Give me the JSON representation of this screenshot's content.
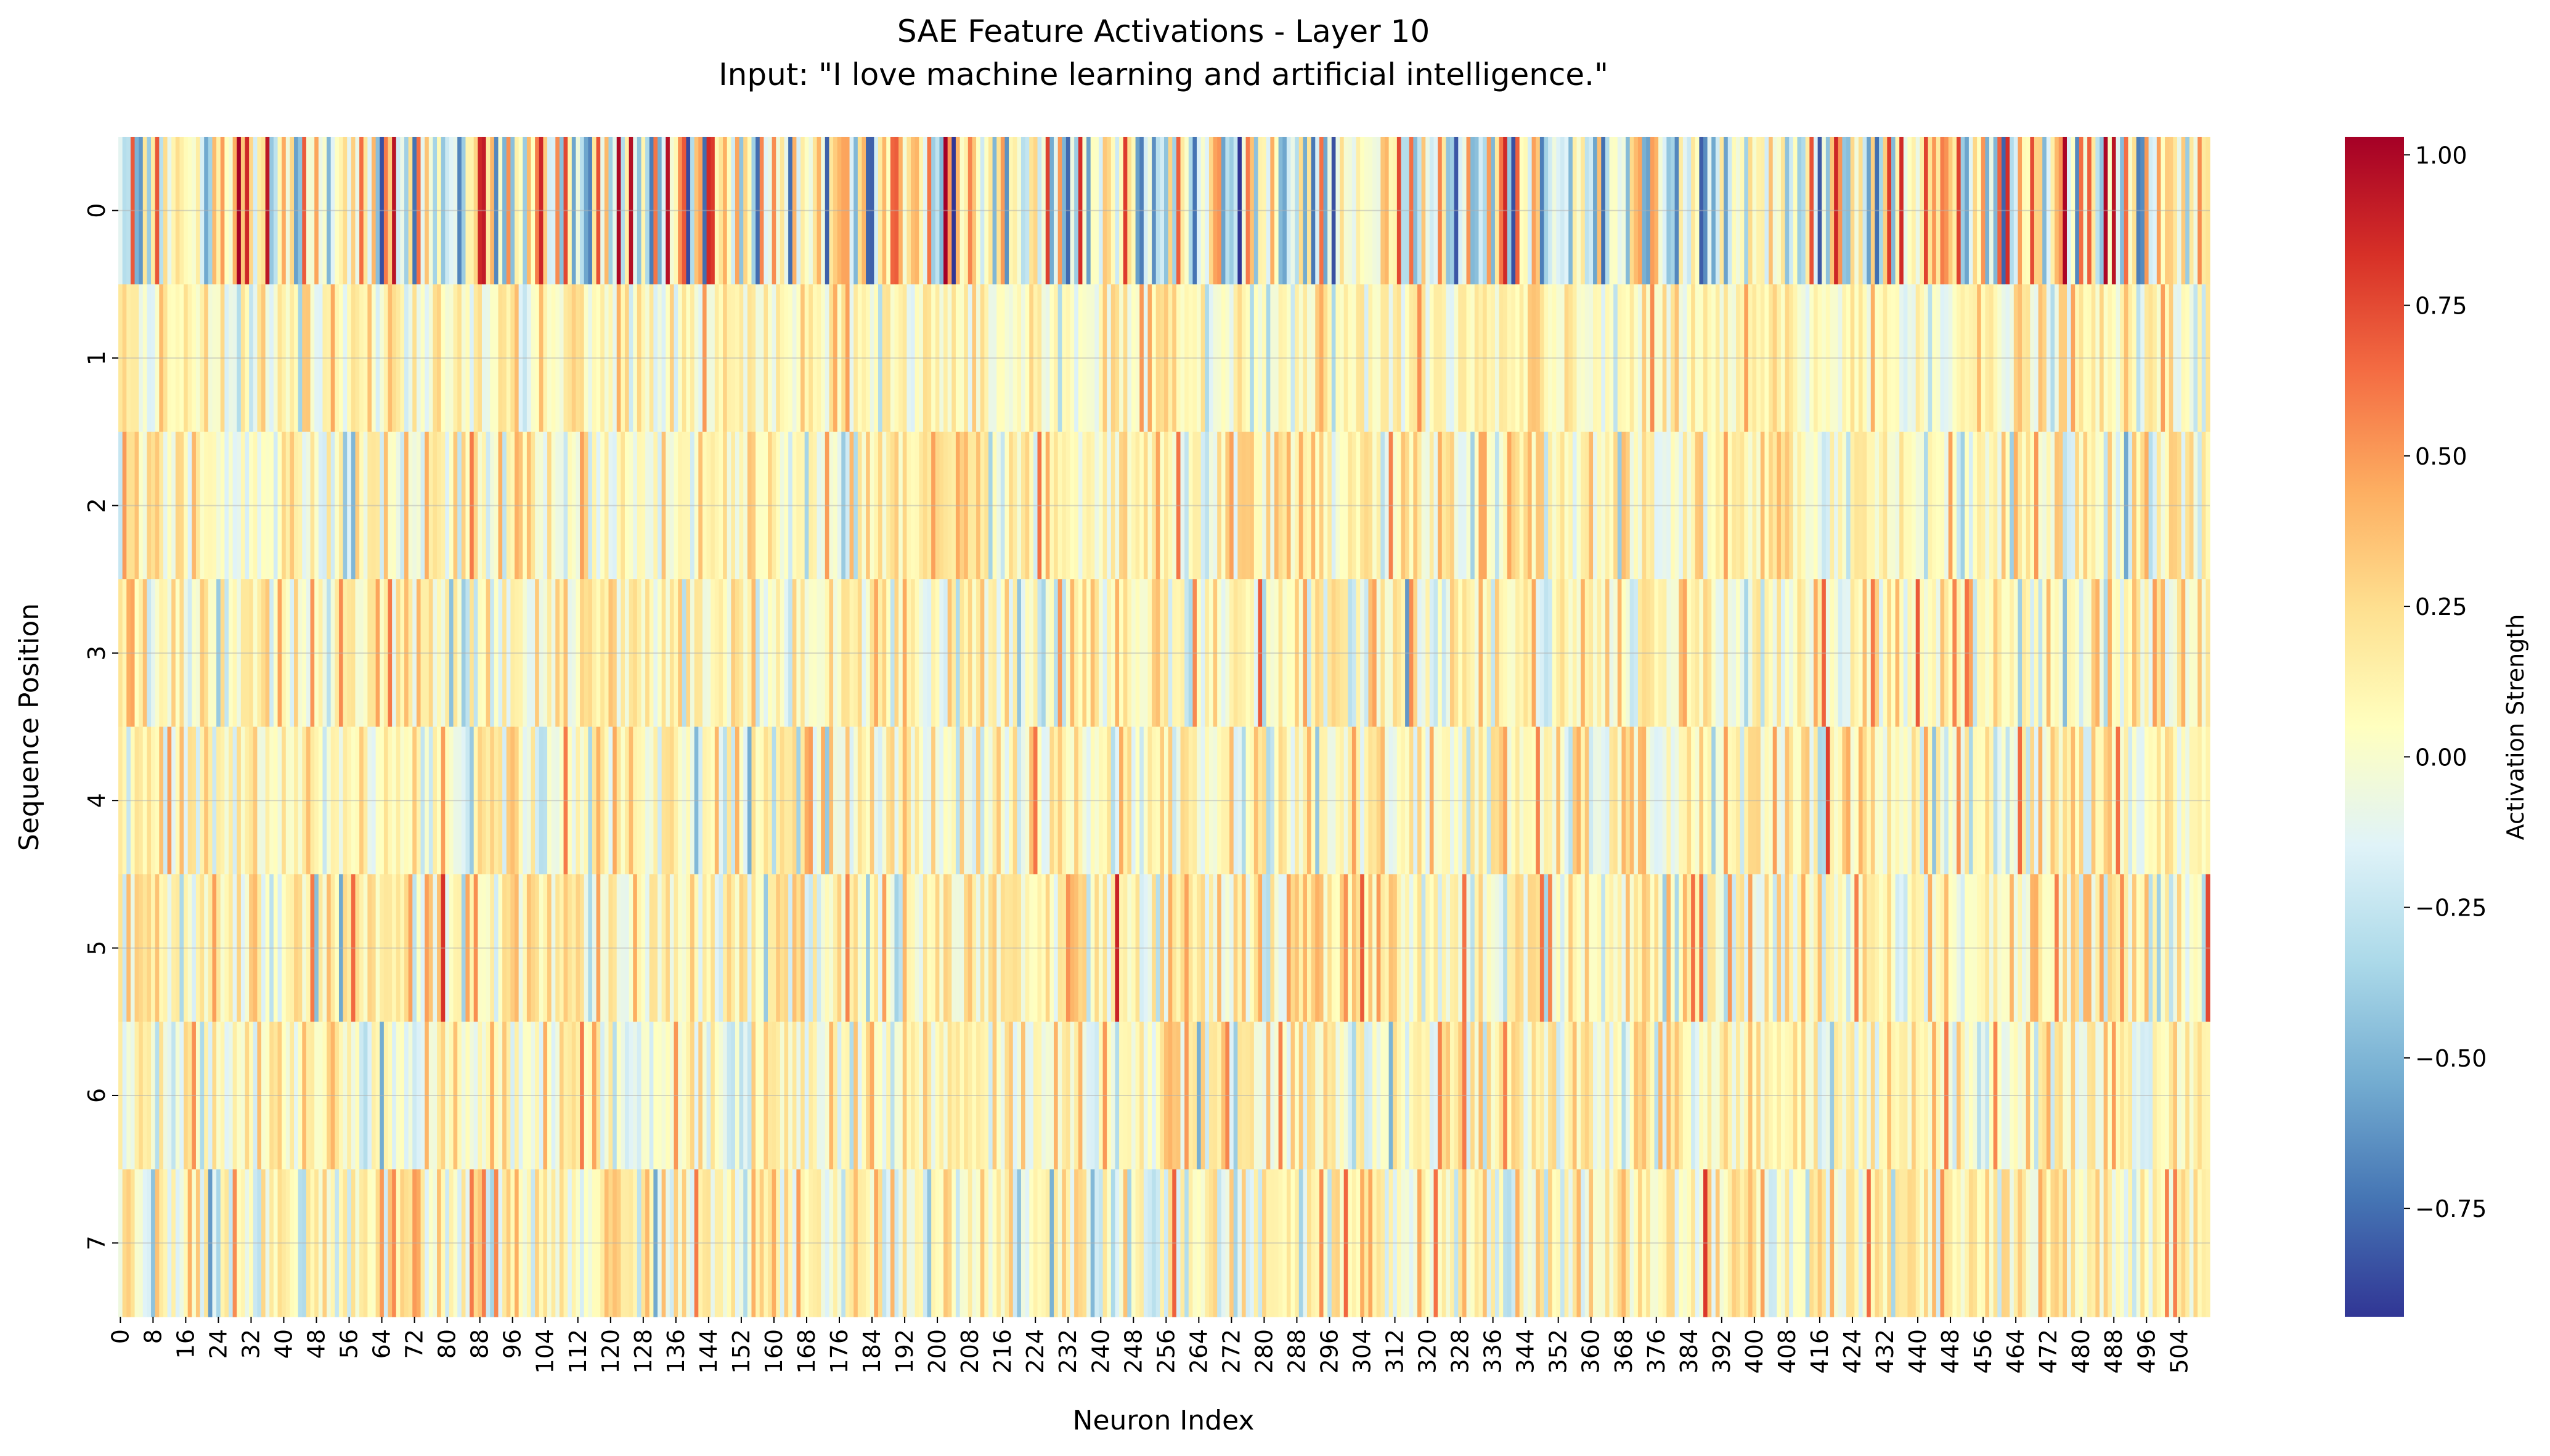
{
  "chart_data": {
    "type": "heatmap",
    "title": "SAE Feature Activations - Layer 10",
    "subtitle": "Input: \"I love machine learning and artificial intelligence.\"",
    "xlabel": "Neuron Index",
    "ylabel": "Sequence Position",
    "n_neurons": 512,
    "x_tick_step": 8,
    "rows": [
      "0",
      "1",
      "2",
      "3",
      "4",
      "5",
      "6",
      "7"
    ],
    "row_spread": [
      0.42,
      0.16,
      0.19,
      0.21,
      0.2,
      0.22,
      0.2,
      0.22
    ],
    "row_offset": [
      0.02,
      0.07,
      0.08,
      0.1,
      0.07,
      0.1,
      0.08,
      0.08
    ],
    "strong_cells": [
      {
        "row": 0,
        "col": 67,
        "value": 0.95
      },
      {
        "row": 0,
        "col": 89,
        "value": 0.92
      },
      {
        "row": 0,
        "col": 125,
        "value": 0.97
      },
      {
        "row": 0,
        "col": 145,
        "value": 0.8
      },
      {
        "row": 0,
        "col": 486,
        "value": 1.0
      },
      {
        "row": 0,
        "col": 488,
        "value": 0.95
      },
      {
        "row": 0,
        "col": 64,
        "value": -0.85
      },
      {
        "row": 0,
        "col": 173,
        "value": -0.8
      },
      {
        "row": 0,
        "col": 184,
        "value": -0.8
      },
      {
        "row": 0,
        "col": 341,
        "value": -0.85
      },
      {
        "row": 0,
        "col": 363,
        "value": -0.75
      },
      {
        "row": 0,
        "col": 430,
        "value": -0.75
      },
      {
        "row": 0,
        "col": 494,
        "value": -0.7
      },
      {
        "row": 2,
        "col": 86,
        "value": 0.6
      },
      {
        "row": 3,
        "col": 66,
        "value": 0.6
      },
      {
        "row": 3,
        "col": 440,
        "value": 0.7
      },
      {
        "row": 4,
        "col": 465,
        "value": 0.65
      },
      {
        "row": 5,
        "col": 304,
        "value": 0.7
      },
      {
        "row": 5,
        "col": 511,
        "value": 0.75
      },
      {
        "row": 6,
        "col": 329,
        "value": 0.6
      },
      {
        "row": 7,
        "col": 86,
        "value": 0.6
      },
      {
        "row": 7,
        "col": 67,
        "value": 0.55
      }
    ],
    "vmin": -0.93,
    "vmax": 1.03,
    "colormap": "RdYlBu_r",
    "colormap_colors": [
      "#313695",
      "#4575b4",
      "#74add1",
      "#abd9e9",
      "#e0f3f8",
      "#ffffbf",
      "#fee090",
      "#fdae61",
      "#f46d43",
      "#d73027",
      "#a50026"
    ],
    "colorbar": {
      "label": "Activation Strength",
      "ticks": [
        1.0,
        0.75,
        0.5,
        0.25,
        0.0,
        -0.25,
        -0.5,
        -0.75
      ],
      "tick_labels": [
        "1.00",
        "0.75",
        "0.50",
        "0.25",
        "0.00",
        "−0.25",
        "−0.50",
        "−0.75"
      ]
    },
    "grid": true
  }
}
